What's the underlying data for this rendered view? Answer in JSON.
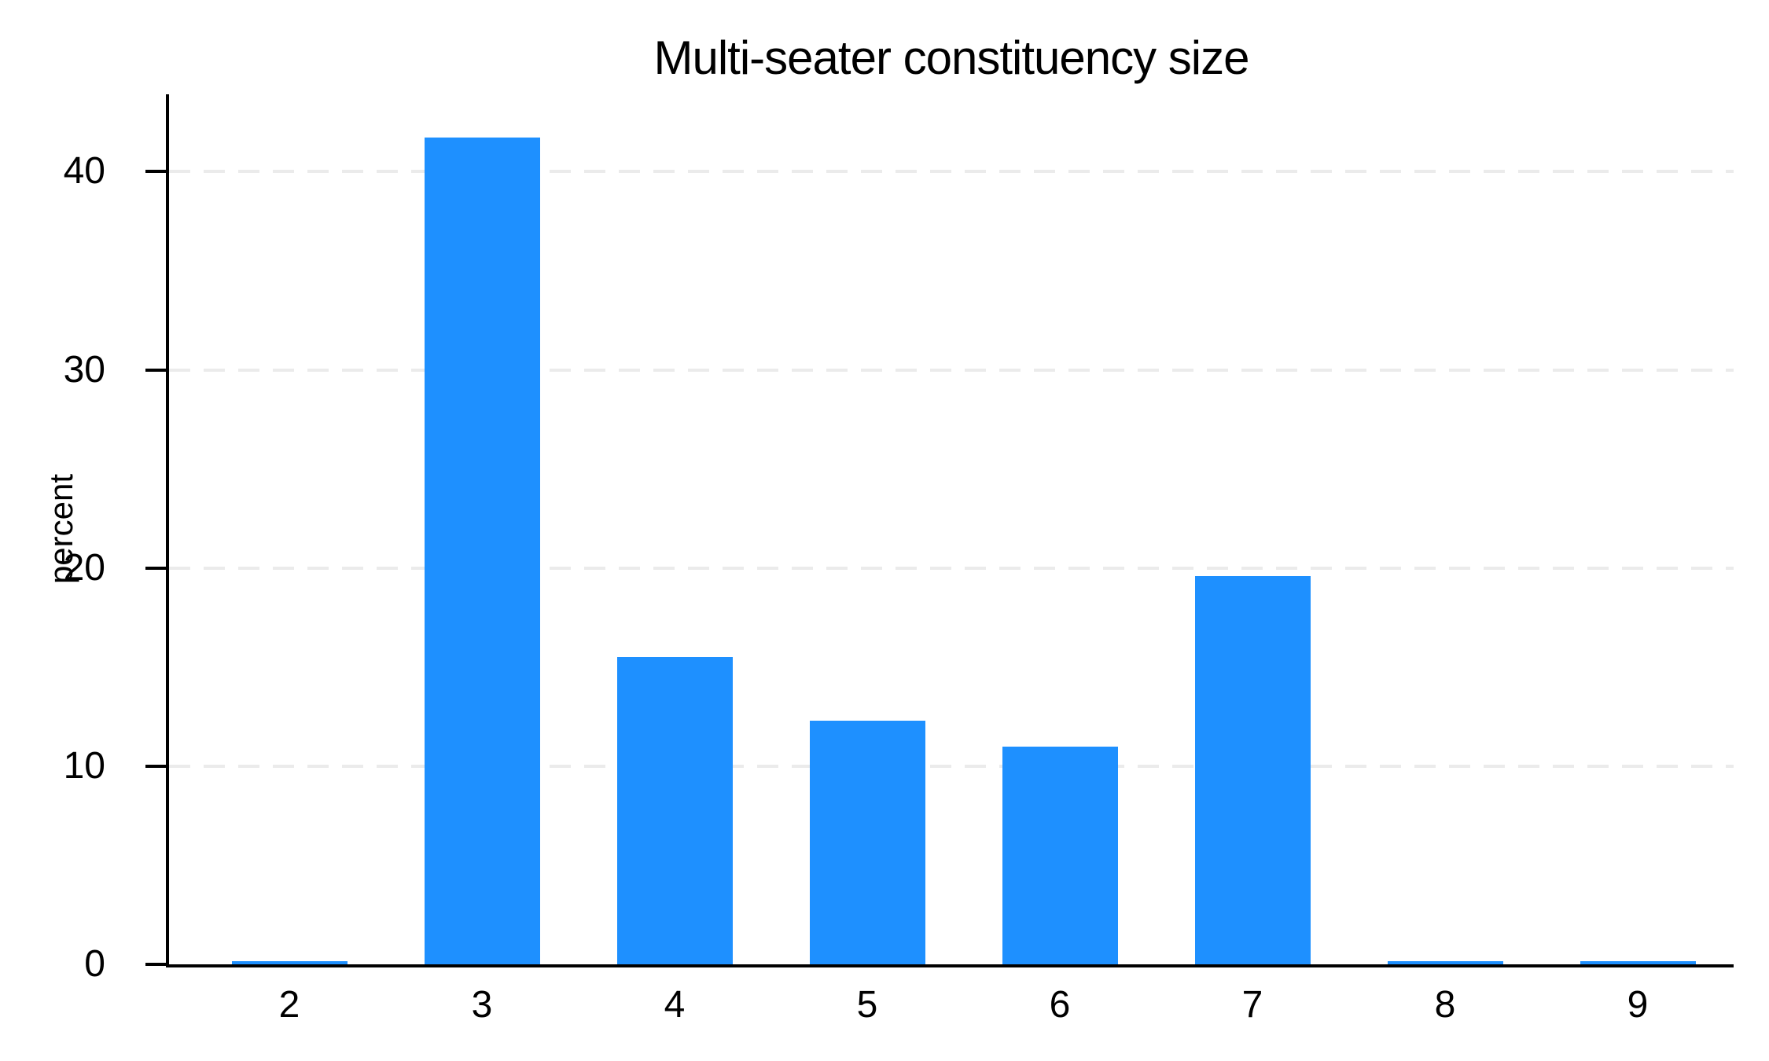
{
  "chart_data": {
    "type": "bar",
    "title": "Multi-seater constituency size",
    "xlabel": "",
    "ylabel": "percent",
    "categories": [
      "2",
      "3",
      "4",
      "5",
      "6",
      "7",
      "8",
      "9"
    ],
    "values": [
      0.15,
      41.7,
      15.5,
      12.3,
      11.0,
      19.6,
      0.15,
      0.15
    ],
    "yticks": [
      0,
      10,
      20,
      30,
      40
    ],
    "ylim": [
      0,
      43.9
    ],
    "grid": true,
    "legend": "none",
    "bar_color": "#1E90FF",
    "gridline_color": "#EBEBEB",
    "axis_color": "#000000",
    "text_color": "#000000",
    "background_color": "#FFFFFF"
  }
}
